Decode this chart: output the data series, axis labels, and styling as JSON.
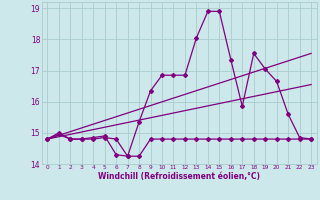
{
  "xlabel": "Windchill (Refroidissement éolien,°C)",
  "bg_color": "#cce8ea",
  "grid_color": "#aacccc",
  "line_color": "#800080",
  "xlim": [
    -0.5,
    23.5
  ],
  "ylim": [
    14,
    19.2
  ],
  "yticks": [
    14,
    15,
    16,
    17,
    18,
    19
  ],
  "xticks": [
    0,
    1,
    2,
    3,
    4,
    5,
    6,
    7,
    8,
    9,
    10,
    11,
    12,
    13,
    14,
    15,
    16,
    17,
    18,
    19,
    20,
    21,
    22,
    23
  ],
  "series1_x": [
    0,
    1,
    2,
    3,
    4,
    5,
    6,
    7,
    8,
    9,
    10,
    11,
    12,
    13,
    14,
    15,
    16,
    17,
    18,
    19,
    20,
    21,
    22,
    23
  ],
  "series1_y": [
    14.8,
    14.95,
    14.8,
    14.8,
    14.8,
    14.85,
    14.8,
    14.25,
    14.25,
    14.8,
    14.8,
    14.8,
    14.8,
    14.8,
    14.8,
    14.8,
    14.8,
    14.8,
    14.8,
    14.8,
    14.8,
    14.8,
    14.8,
    14.8
  ],
  "series2_x": [
    0,
    1,
    2,
    3,
    4,
    5,
    6,
    7,
    8,
    9,
    10,
    11,
    12,
    13,
    14,
    15,
    16,
    17,
    18,
    19,
    20,
    21,
    22,
    23
  ],
  "series2_y": [
    14.8,
    15.0,
    14.8,
    14.8,
    14.85,
    14.9,
    14.3,
    14.25,
    15.35,
    16.35,
    16.85,
    16.85,
    16.85,
    18.05,
    18.9,
    18.9,
    17.35,
    15.85,
    17.55,
    17.05,
    16.65,
    15.6,
    14.85,
    14.8
  ],
  "series3_x": [
    0,
    23
  ],
  "series3_y": [
    14.8,
    17.55
  ],
  "series4_x": [
    0,
    23
  ],
  "series4_y": [
    14.8,
    16.55
  ]
}
